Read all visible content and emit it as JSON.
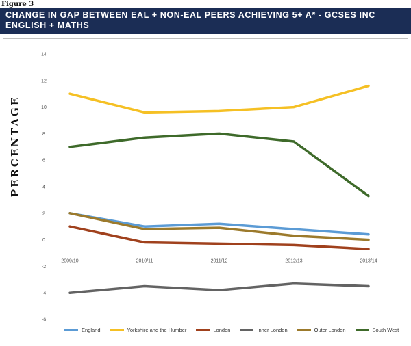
{
  "figure_label": "Figure 3",
  "chart_data": {
    "type": "line",
    "title": "CHANGE IN GAP BETWEEN EAL + NON-EAL PEERS ACHIEVING 5+ A* - GCSES INC ENGLISH + MATHS",
    "xlabel": "",
    "ylabel": "PERCENTAGE",
    "categories": [
      "2009/10",
      "2010/11",
      "2011/12",
      "2012/13",
      "2013/14"
    ],
    "ylim": [
      -6,
      14
    ],
    "yticks": [
      14,
      12,
      10,
      8,
      6,
      4,
      2,
      0,
      -2,
      -4,
      -6
    ],
    "grid": false,
    "legend_position": "bottom",
    "series": [
      {
        "name": "England",
        "color": "#5b9bd5",
        "values": [
          2.0,
          1.0,
          1.2,
          0.8,
          0.4
        ]
      },
      {
        "name": "Yorkshire and the Humber",
        "color": "#f5c024",
        "values": [
          11.0,
          9.6,
          9.7,
          10.0,
          11.6
        ]
      },
      {
        "name": "London",
        "color": "#a0411d",
        "values": [
          1.0,
          -0.2,
          -0.3,
          -0.4,
          -0.7
        ]
      },
      {
        "name": "Inner London",
        "color": "#636363",
        "values": [
          -4.0,
          -3.5,
          -3.8,
          -3.3,
          -3.5
        ]
      },
      {
        "name": "Outer London",
        "color": "#9c7a2c",
        "values": [
          2.0,
          0.8,
          0.9,
          0.3,
          0.0
        ]
      },
      {
        "name": "South West",
        "color": "#3e6a2a",
        "values": [
          7.0,
          7.7,
          8.0,
          7.4,
          3.3
        ]
      }
    ]
  }
}
